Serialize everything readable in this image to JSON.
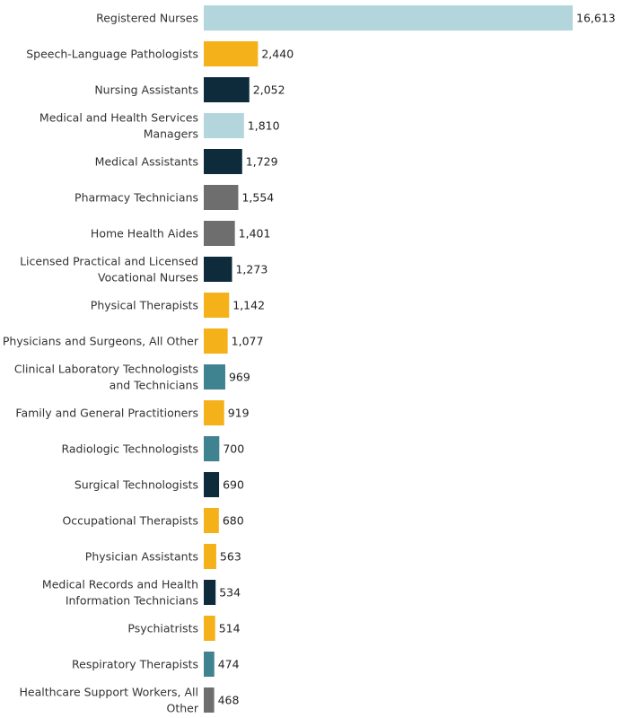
{
  "chart_data": {
    "type": "bar",
    "orientation": "horizontal",
    "title": "",
    "xlabel": "",
    "ylabel": "",
    "grid": false,
    "legend": "none",
    "xlim": [
      0,
      16613
    ],
    "categories": [
      "Registered Nurses",
      "Speech-Language Pathologists",
      "Nursing Assistants",
      "Medical and Health Services Managers",
      "Medical Assistants",
      "Pharmacy Technicians",
      "Home Health Aides",
      "Licensed Practical and Licensed Vocational Nurses",
      "Physical Therapists",
      "Physicians and Surgeons, All Other",
      "Clinical Laboratory Technologists and Technicians",
      "Family and General Practitioners",
      "Radiologic Technologists",
      "Surgical Technologists",
      "Occupational Therapists",
      "Physician Assistants",
      "Medical Records and Health Information Technicians",
      "Psychiatrists",
      "Respiratory Therapists",
      "Healthcare Support Workers, All Other"
    ],
    "label_lines": [
      [
        "Registered Nurses"
      ],
      [
        "Speech-Language Pathologists"
      ],
      [
        "Nursing Assistants"
      ],
      [
        "Medical and Health Services",
        "Managers"
      ],
      [
        "Medical Assistants"
      ],
      [
        "Pharmacy Technicians"
      ],
      [
        "Home Health Aides"
      ],
      [
        "Licensed Practical and Licensed",
        "Vocational Nurses"
      ],
      [
        "Physical Therapists"
      ],
      [
        "Physicians and Surgeons, All Other"
      ],
      [
        "Clinical Laboratory Technologists",
        "and Technicians"
      ],
      [
        "Family and General Practitioners"
      ],
      [
        "Radiologic Technologists"
      ],
      [
        "Surgical Technologists"
      ],
      [
        "Occupational Therapists"
      ],
      [
        "Physician Assistants"
      ],
      [
        "Medical Records and Health",
        "Information Technicians"
      ],
      [
        "Psychiatrists"
      ],
      [
        "Respiratory Therapists"
      ],
      [
        "Healthcare Support Workers, All",
        "Other"
      ]
    ],
    "values": [
      16613,
      2440,
      2052,
      1810,
      1729,
      1554,
      1401,
      1273,
      1142,
      1077,
      969,
      919,
      700,
      690,
      680,
      563,
      534,
      514,
      474,
      468
    ],
    "value_labels": [
      "16,613",
      "2,440",
      "2,052",
      "1,810",
      "1,729",
      "1,554",
      "1,401",
      "1,273",
      "1,142",
      "1,077",
      "969",
      "919",
      "700",
      "690",
      "680",
      "563",
      "534",
      "514",
      "474",
      "468"
    ],
    "colors": [
      "#b3d5dc",
      "#f4b11a",
      "#0d2b3a",
      "#b3d5dc",
      "#0d2b3a",
      "#6e6e6e",
      "#6e6e6e",
      "#0d2b3a",
      "#f4b11a",
      "#f4b11a",
      "#3f8290",
      "#f4b11a",
      "#3f8290",
      "#0d2b3a",
      "#f4b11a",
      "#f4b11a",
      "#0d2b3a",
      "#f4b11a",
      "#3f8290",
      "#6e6e6e"
    ]
  }
}
